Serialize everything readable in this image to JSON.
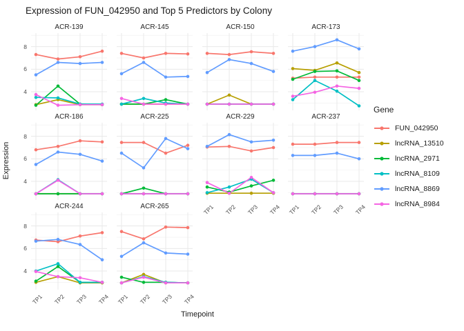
{
  "title": "Expression of FUN_042950 and Top 5 Predictors by Colony",
  "axes": {
    "x_label": "Timepoint",
    "y_label": "Expression",
    "x_ticks": [
      "TP1",
      "TP2",
      "TP3",
      "TP4"
    ],
    "y_ticks": [
      4,
      6,
      8
    ]
  },
  "legend": {
    "title": "Gene",
    "items": [
      {
        "label": "FUN_042950",
        "color": "#F8766D"
      },
      {
        "label": "lncRNA_13510",
        "color": "#B79F00"
      },
      {
        "label": "lncRNA_2971",
        "color": "#00BA38"
      },
      {
        "label": "lncRNA_8109",
        "color": "#00BFC4"
      },
      {
        "label": "lncRNA_8869",
        "color": "#619CFF"
      },
      {
        "label": "lncRNA_8984",
        "color": "#F564E3"
      }
    ]
  },
  "chart_data": {
    "type": "line",
    "title": "Expression of FUN_042950 and Top 5 Predictors by Colony",
    "xlabel": "Timepoint",
    "ylabel": "Expression",
    "x": [
      "TP1",
      "TP2",
      "TP3",
      "TP4"
    ],
    "ylim": [
      2.35,
      9.2
    ],
    "y_major_gridlines": [
      4,
      6,
      8
    ],
    "y_minor_gridlines": [
      3,
      5,
      7,
      9
    ],
    "grid": true,
    "legend_position": "right",
    "legend_title": "Gene",
    "series_colors": {
      "FUN_042950": "#F8766D",
      "lncRNA_13510": "#B79F00",
      "lncRNA_2971": "#00BA38",
      "lncRNA_8109": "#00BFC4",
      "lncRNA_8869": "#619CFF",
      "lncRNA_8984": "#F564E3"
    },
    "facets": [
      {
        "label": "ACR-139",
        "row": 0,
        "col": 0,
        "series": [
          {
            "name": "FUN_042950",
            "values": [
              7.3,
              6.9,
              7.1,
              7.6
            ]
          },
          {
            "name": "lncRNA_13510",
            "values": [
              2.85,
              3.3,
              2.85,
              2.85
            ]
          },
          {
            "name": "lncRNA_2971",
            "values": [
              2.8,
              4.5,
              2.9,
              2.85
            ]
          },
          {
            "name": "lncRNA_8109",
            "values": [
              3.5,
              3.45,
              2.9,
              2.9
            ]
          },
          {
            "name": "lncRNA_8869",
            "values": [
              5.5,
              6.6,
              6.5,
              6.6
            ]
          },
          {
            "name": "lncRNA_8984",
            "values": [
              3.75,
              2.8,
              2.85,
              2.85
            ]
          }
        ]
      },
      {
        "label": "ACR-145",
        "row": 0,
        "col": 1,
        "series": [
          {
            "name": "FUN_042950",
            "values": [
              7.4,
              7.0,
              7.4,
              7.35
            ]
          },
          {
            "name": "lncRNA_13510",
            "values": [
              2.9,
              2.9,
              2.9,
              2.9
            ]
          },
          {
            "name": "lncRNA_2971",
            "values": [
              2.9,
              2.9,
              3.3,
              2.9
            ]
          },
          {
            "name": "lncRNA_8109",
            "values": [
              2.9,
              3.4,
              3.0,
              2.9
            ]
          },
          {
            "name": "lncRNA_8869",
            "values": [
              5.6,
              6.6,
              5.3,
              5.35
            ]
          },
          {
            "name": "lncRNA_8984",
            "values": [
              3.4,
              2.9,
              2.9,
              2.9
            ]
          }
        ]
      },
      {
        "label": "ACR-150",
        "row": 0,
        "col": 2,
        "series": [
          {
            "name": "FUN_042950",
            "values": [
              7.4,
              7.3,
              7.55,
              7.4
            ]
          },
          {
            "name": "lncRNA_13510",
            "values": [
              2.9,
              3.7,
              2.9,
              2.9
            ]
          },
          {
            "name": "lncRNA_2971",
            "values": [
              2.9,
              2.9,
              2.9,
              2.9
            ]
          },
          {
            "name": "lncRNA_8109",
            "values": [
              2.9,
              2.9,
              2.9,
              2.9
            ]
          },
          {
            "name": "lncRNA_8869",
            "values": [
              5.7,
              6.85,
              6.5,
              5.8
            ]
          },
          {
            "name": "lncRNA_8984",
            "values": [
              2.9,
              2.9,
              2.9,
              2.9
            ]
          }
        ]
      },
      {
        "label": "ACR-173",
        "row": 0,
        "col": 3,
        "series": [
          {
            "name": "FUN_042950",
            "values": [
              5.2,
              5.3,
              5.3,
              5.3
            ]
          },
          {
            "name": "lncRNA_13510",
            "values": [
              6.05,
              5.9,
              6.55,
              5.7
            ]
          },
          {
            "name": "lncRNA_2971",
            "values": [
              5.1,
              5.8,
              5.85,
              5.0
            ]
          },
          {
            "name": "lncRNA_8109",
            "values": [
              3.3,
              5.0,
              4.05,
              2.75
            ]
          },
          {
            "name": "lncRNA_8869",
            "values": [
              7.6,
              8.0,
              8.6,
              7.8
            ]
          },
          {
            "name": "lncRNA_8984",
            "values": [
              3.6,
              3.95,
              4.5,
              4.3
            ]
          }
        ]
      },
      {
        "label": "ACR-186",
        "row": 1,
        "col": 0,
        "series": [
          {
            "name": "FUN_042950",
            "values": [
              6.8,
              7.1,
              7.6,
              7.5
            ]
          },
          {
            "name": "lncRNA_13510",
            "values": [
              2.9,
              2.9,
              2.9,
              2.9
            ]
          },
          {
            "name": "lncRNA_2971",
            "values": [
              2.9,
              2.9,
              2.9,
              2.9
            ]
          },
          {
            "name": "lncRNA_8109",
            "values": [
              2.9,
              4.15,
              2.9,
              2.9
            ]
          },
          {
            "name": "lncRNA_8869",
            "values": [
              5.5,
              6.6,
              6.4,
              5.8
            ]
          },
          {
            "name": "lncRNA_8984",
            "values": [
              2.9,
              4.1,
              2.9,
              2.9
            ]
          }
        ]
      },
      {
        "label": "ACR-225",
        "row": 1,
        "col": 1,
        "series": [
          {
            "name": "FUN_042950",
            "values": [
              7.45,
              7.45,
              6.5,
              7.2
            ]
          },
          {
            "name": "lncRNA_13510",
            "values": [
              2.9,
              2.9,
              2.9,
              2.9
            ]
          },
          {
            "name": "lncRNA_2971",
            "values": [
              2.9,
              3.4,
              2.9,
              2.9
            ]
          },
          {
            "name": "lncRNA_8109",
            "values": [
              2.9,
              2.9,
              2.9,
              2.9
            ]
          },
          {
            "name": "lncRNA_8869",
            "values": [
              6.5,
              5.2,
              7.8,
              6.9
            ]
          },
          {
            "name": "lncRNA_8984",
            "values": [
              2.9,
              2.9,
              2.9,
              2.9
            ]
          }
        ]
      },
      {
        "label": "ACR-229",
        "row": 1,
        "col": 2,
        "series": [
          {
            "name": "FUN_042950",
            "values": [
              7.05,
              7.1,
              6.7,
              7.0
            ]
          },
          {
            "name": "lncRNA_13510",
            "values": [
              2.95,
              2.95,
              2.95,
              2.95
            ]
          },
          {
            "name": "lncRNA_2971",
            "values": [
              3.5,
              3.05,
              3.6,
              4.1
            ]
          },
          {
            "name": "lncRNA_8109",
            "values": [
              3.0,
              3.5,
              4.2,
              3.0
            ]
          },
          {
            "name": "lncRNA_8869",
            "values": [
              7.1,
              8.15,
              7.5,
              7.65
            ]
          },
          {
            "name": "lncRNA_8984",
            "values": [
              3.9,
              2.95,
              4.35,
              3.0
            ]
          }
        ]
      },
      {
        "label": "ACR-237",
        "row": 1,
        "col": 3,
        "series": [
          {
            "name": "FUN_042950",
            "values": [
              7.3,
              7.3,
              7.45,
              7.45
            ]
          },
          {
            "name": "lncRNA_13510",
            "values": [
              2.9,
              2.9,
              2.9,
              2.9
            ]
          },
          {
            "name": "lncRNA_2971",
            "values": [
              2.9,
              2.9,
              2.9,
              2.9
            ]
          },
          {
            "name": "lncRNA_8109",
            "values": [
              2.9,
              2.9,
              2.9,
              2.9
            ]
          },
          {
            "name": "lncRNA_8869",
            "values": [
              6.3,
              6.3,
              6.5,
              6.0
            ]
          },
          {
            "name": "lncRNA_8984",
            "values": [
              2.9,
              2.9,
              2.9,
              2.9
            ]
          }
        ]
      },
      {
        "label": "ACR-244",
        "row": 2,
        "col": 0,
        "series": [
          {
            "name": "FUN_042950",
            "values": [
              6.75,
              6.6,
              7.1,
              7.4
            ]
          },
          {
            "name": "lncRNA_13510",
            "values": [
              3.0,
              3.5,
              2.95,
              2.95
            ]
          },
          {
            "name": "lncRNA_2971",
            "values": [
              3.1,
              4.4,
              3.0,
              3.0
            ]
          },
          {
            "name": "lncRNA_8109",
            "values": [
              4.0,
              4.65,
              3.0,
              3.0
            ]
          },
          {
            "name": "lncRNA_8869",
            "values": [
              6.65,
              6.8,
              6.35,
              5.0
            ]
          },
          {
            "name": "lncRNA_8984",
            "values": [
              3.95,
              3.5,
              3.4,
              3.0
            ]
          }
        ]
      },
      {
        "label": "ACR-265",
        "row": 2,
        "col": 1,
        "series": [
          {
            "name": "FUN_042950",
            "values": [
              7.5,
              6.85,
              7.9,
              7.85
            ]
          },
          {
            "name": "lncRNA_13510",
            "values": [
              2.95,
              3.7,
              2.95,
              2.95
            ]
          },
          {
            "name": "lncRNA_2971",
            "values": [
              3.45,
              3.0,
              3.0,
              2.95
            ]
          },
          {
            "name": "lncRNA_8109",
            "values": [
              2.95,
              3.5,
              3.0,
              2.95
            ]
          },
          {
            "name": "lncRNA_8869",
            "values": [
              5.3,
              6.5,
              5.6,
              5.5
            ]
          },
          {
            "name": "lncRNA_8984",
            "values": [
              2.95,
              3.45,
              2.95,
              2.95
            ]
          }
        ]
      }
    ]
  }
}
